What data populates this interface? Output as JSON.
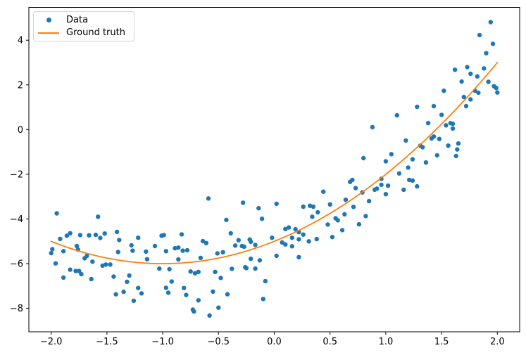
{
  "figure": {
    "background": "#ffffff",
    "frame_color": "#000000",
    "text_color": "#000000"
  },
  "chart_data": {
    "type": "scatter",
    "title": "",
    "xlabel": "",
    "ylabel": "",
    "grid": false,
    "xlim": [
      -2.2,
      2.2
    ],
    "ylim": [
      -9.05,
      5.47
    ],
    "x_ticks": {
      "values": [
        -2.0,
        -1.5,
        -1.0,
        -0.5,
        0.0,
        0.5,
        1.0,
        1.5,
        2.0
      ],
      "labels": [
        "−2.0",
        "−1.5",
        "−1.0",
        "−0.5",
        "0.0",
        "0.5",
        "1.0",
        "1.5",
        "2.0"
      ]
    },
    "y_ticks": {
      "values": [
        -8,
        -6,
        -4,
        -2,
        0,
        2,
        4
      ],
      "labels": [
        "−8",
        "−6",
        "−4",
        "−2",
        "0",
        "2",
        "4"
      ]
    },
    "legend": {
      "position": "upper left"
    },
    "series": [
      {
        "name": "Data",
        "type": "scatter",
        "color": "#1f77b4",
        "marker": "circle",
        "points": [
          [
            -2.0,
            -5.53
          ],
          [
            -1.99,
            -5.35
          ],
          [
            -1.96,
            -5.99
          ],
          [
            -1.95,
            -3.75
          ],
          [
            -1.92,
            -4.89
          ],
          [
            -1.89,
            -5.44
          ],
          [
            -1.89,
            -6.62
          ],
          [
            -1.86,
            -4.75
          ],
          [
            -1.83,
            -4.64
          ],
          [
            -1.83,
            -6.27
          ],
          [
            -1.78,
            -6.33
          ],
          [
            -1.77,
            -5.21
          ],
          [
            -1.76,
            -5.37
          ],
          [
            -1.75,
            -6.33
          ],
          [
            -1.74,
            -4.72
          ],
          [
            -1.73,
            -6.47
          ],
          [
            -1.7,
            -5.76
          ],
          [
            -1.68,
            -5.65
          ],
          [
            -1.66,
            -4.73
          ],
          [
            -1.64,
            -6.69
          ],
          [
            -1.63,
            -5.91
          ],
          [
            -1.6,
            -4.71
          ],
          [
            -1.58,
            -3.9
          ],
          [
            -1.56,
            -4.85
          ],
          [
            -1.54,
            -6.09
          ],
          [
            -1.52,
            -4.65
          ],
          [
            -1.51,
            -6.04
          ],
          [
            -1.47,
            -6.04
          ],
          [
            -1.44,
            -6.58
          ],
          [
            -1.42,
            -7.37
          ],
          [
            -1.41,
            -4.58
          ],
          [
            -1.4,
            -5.48
          ],
          [
            -1.39,
            -4.94
          ],
          [
            -1.35,
            -7.26
          ],
          [
            -1.32,
            -6.81
          ],
          [
            -1.3,
            -6.53
          ],
          [
            -1.28,
            -5.18
          ],
          [
            -1.27,
            -5.42
          ],
          [
            -1.26,
            -7.66
          ],
          [
            -1.22,
            -4.84
          ],
          [
            -1.22,
            -7.09
          ],
          [
            -1.19,
            -7.33
          ],
          [
            -1.15,
            -5.46
          ],
          [
            -1.14,
            -5.8
          ],
          [
            -1.07,
            -5.21
          ],
          [
            -1.03,
            -6.22
          ],
          [
            -1.01,
            -4.75
          ],
          [
            -0.99,
            -4.72
          ],
          [
            -0.97,
            -5.44
          ],
          [
            -0.97,
            -7.08
          ],
          [
            -0.95,
            -7.3
          ],
          [
            -0.94,
            -6.25
          ],
          [
            -0.92,
            -6.8
          ],
          [
            -0.89,
            -5.31
          ],
          [
            -0.86,
            -5.28
          ],
          [
            -0.86,
            -5.81
          ],
          [
            -0.83,
            -4.69
          ],
          [
            -0.82,
            -5.42
          ],
          [
            -0.81,
            -7.09
          ],
          [
            -0.79,
            -7.4
          ],
          [
            -0.78,
            -5.4
          ],
          [
            -0.75,
            -6.35
          ],
          [
            -0.73,
            -8.06
          ],
          [
            -0.72,
            -8.14
          ],
          [
            -0.71,
            -6.43
          ],
          [
            -0.68,
            -6.37
          ],
          [
            -0.68,
            -7.64
          ],
          [
            -0.66,
            -5.74
          ],
          [
            -0.64,
            -4.99
          ],
          [
            -0.61,
            -5.08
          ],
          [
            -0.59,
            -3.08
          ],
          [
            -0.58,
            -8.32
          ],
          [
            -0.55,
            -7.25
          ],
          [
            -0.53,
            -6.37
          ],
          [
            -0.51,
            -5.54
          ],
          [
            -0.5,
            -7.97
          ],
          [
            -0.48,
            -6.64
          ],
          [
            -0.46,
            -5.49
          ],
          [
            -0.43,
            -4.04
          ],
          [
            -0.42,
            -7.37
          ],
          [
            -0.39,
            -4.64
          ],
          [
            -0.38,
            -6.23
          ],
          [
            -0.35,
            -5.19
          ],
          [
            -0.32,
            -4.95
          ],
          [
            -0.29,
            -5.21
          ],
          [
            -0.28,
            -3.27
          ],
          [
            -0.27,
            -5.24
          ],
          [
            -0.26,
            -6.16
          ],
          [
            -0.25,
            -6.2
          ],
          [
            -0.22,
            -4.92
          ],
          [
            -0.21,
            -5.02
          ],
          [
            -0.21,
            -5.78
          ],
          [
            -0.17,
            -5.16
          ],
          [
            -0.17,
            -6.22
          ],
          [
            -0.14,
            -3.52
          ],
          [
            -0.13,
            -5.85
          ],
          [
            -0.11,
            -3.99
          ],
          [
            -0.1,
            -7.58
          ],
          [
            -0.08,
            -6.78
          ],
          [
            -0.02,
            -4.84
          ],
          [
            0.02,
            -3.32
          ],
          [
            0.02,
            -5.65
          ],
          [
            0.07,
            -5.05
          ],
          [
            0.1,
            -4.45
          ],
          [
            0.1,
            -5.14
          ],
          [
            0.13,
            -4.38
          ],
          [
            0.16,
            -4.84
          ],
          [
            0.16,
            -5.22
          ],
          [
            0.19,
            -4.46
          ],
          [
            0.22,
            -4.59
          ],
          [
            0.22,
            -4.91
          ],
          [
            0.22,
            -5.71
          ],
          [
            0.26,
            -3.45
          ],
          [
            0.26,
            -4.7
          ],
          [
            0.31,
            -5.0
          ],
          [
            0.32,
            -3.41
          ],
          [
            0.34,
            -3.9
          ],
          [
            0.35,
            -3.45
          ],
          [
            0.38,
            -4.9
          ],
          [
            0.39,
            -3.7
          ],
          [
            0.44,
            -2.78
          ],
          [
            0.48,
            -4.25
          ],
          [
            0.5,
            -3.35
          ],
          [
            0.52,
            -4.81
          ],
          [
            0.55,
            -3.97
          ],
          [
            0.57,
            -4.06
          ],
          [
            0.61,
            -4.5
          ],
          [
            0.63,
            -3.79
          ],
          [
            0.64,
            -3.14
          ],
          [
            0.68,
            -2.34
          ],
          [
            0.7,
            -2.25
          ],
          [
            0.71,
            -3.46
          ],
          [
            0.73,
            -2.62
          ],
          [
            0.76,
            -4.24
          ],
          [
            0.79,
            -2.81
          ],
          [
            0.8,
            -1.28
          ],
          [
            0.82,
            -3.87
          ],
          [
            0.85,
            -3.2
          ],
          [
            0.88,
            0.11
          ],
          [
            0.9,
            -2.69
          ],
          [
            0.92,
            -2.64
          ],
          [
            0.96,
            -2.2
          ],
          [
            0.96,
            -2.47
          ],
          [
            1.0,
            -1.42
          ],
          [
            1.0,
            -2.89
          ],
          [
            1.02,
            -2.51
          ],
          [
            1.05,
            -1.1
          ],
          [
            1.1,
            0.64
          ],
          [
            1.12,
            -1.96
          ],
          [
            1.16,
            -2.69
          ],
          [
            1.18,
            -0.49
          ],
          [
            1.2,
            -1.7
          ],
          [
            1.21,
            -2.25
          ],
          [
            1.24,
            -1.33
          ],
          [
            1.24,
            -2.28
          ],
          [
            1.28,
            -2.54
          ],
          [
            1.28,
            1.02
          ],
          [
            1.31,
            -0.72
          ],
          [
            1.33,
            -0.79
          ],
          [
            1.36,
            -1.47
          ],
          [
            1.38,
            0.29
          ],
          [
            1.41,
            -0.39
          ],
          [
            1.43,
            -0.31
          ],
          [
            1.43,
            1.05
          ],
          [
            1.46,
            -1.15
          ],
          [
            1.48,
            -0.42
          ],
          [
            1.5,
            0.66
          ],
          [
            1.52,
            1.74
          ],
          [
            1.54,
            0.19
          ],
          [
            1.56,
            -0.72
          ],
          [
            1.58,
            0.29
          ],
          [
            1.6,
            0.05
          ],
          [
            1.6,
            0.26
          ],
          [
            1.62,
            2.68
          ],
          [
            1.63,
            -1.18
          ],
          [
            1.64,
            -0.89
          ],
          [
            1.65,
            -0.62
          ],
          [
            1.68,
            2.15
          ],
          [
            1.7,
            1.46
          ],
          [
            1.72,
            1.05
          ],
          [
            1.73,
            2.8
          ],
          [
            1.76,
            1.35
          ],
          [
            1.76,
            2.5
          ],
          [
            1.8,
            1.74
          ],
          [
            1.82,
            2.38
          ],
          [
            1.83,
            1.65
          ],
          [
            1.84,
            4.23
          ],
          [
            1.88,
            2.74
          ],
          [
            1.9,
            3.42
          ],
          [
            1.92,
            2.14
          ],
          [
            1.94,
            4.81
          ],
          [
            1.96,
            3.84
          ],
          [
            1.97,
            1.94
          ],
          [
            1.99,
            1.86
          ],
          [
            2.0,
            1.66
          ]
        ]
      },
      {
        "name": "Ground truth",
        "type": "line",
        "color": "#ff7f0e",
        "model": "y = x^2 + 2x - 5",
        "poly_coeffs": [
          1,
          2,
          -5
        ],
        "x_range": [
          -2,
          2
        ]
      }
    ]
  },
  "legend": {
    "data_label": "Data",
    "ground_truth_label": "Ground truth"
  }
}
